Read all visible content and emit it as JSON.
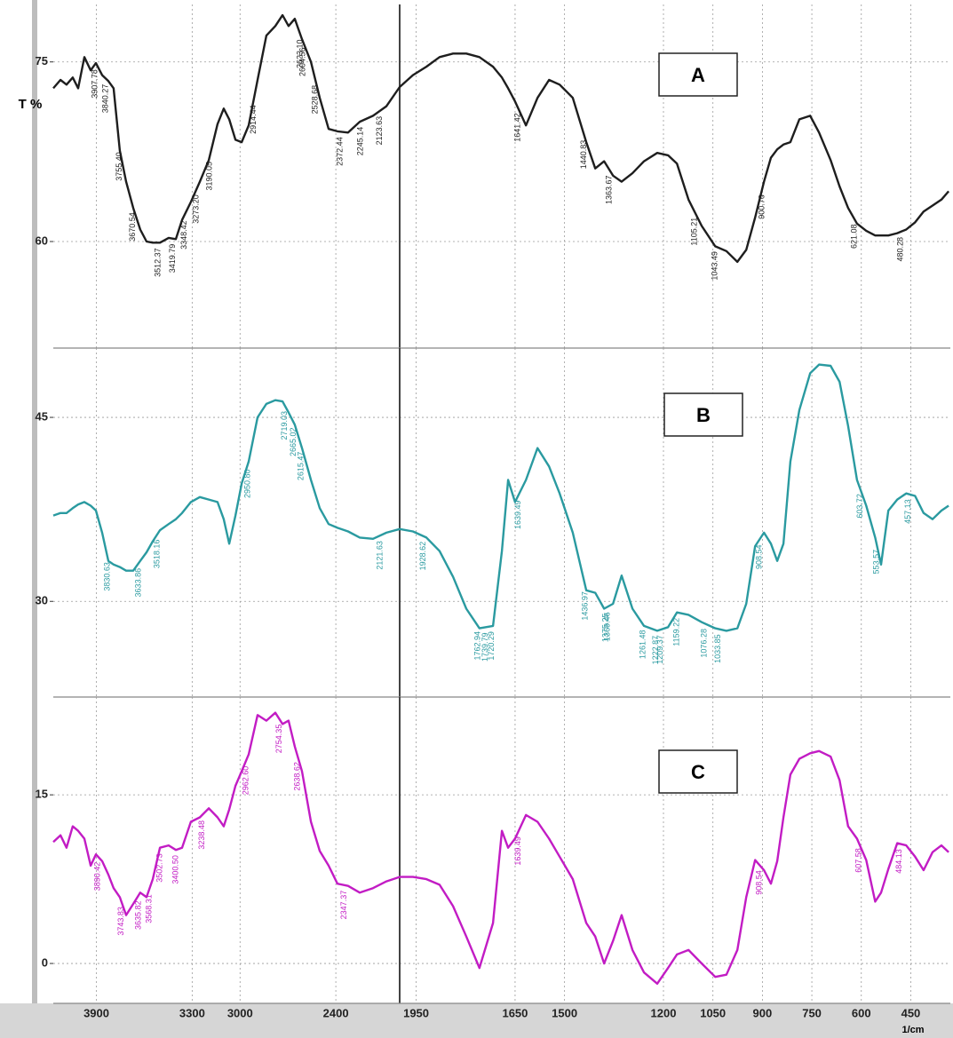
{
  "chart_data": {
    "type": "line",
    "ylabel": "T %",
    "xlabel": "1/cm",
    "xlim": [
      4170,
      330
    ],
    "x_break": 2000,
    "xticks": [
      3900,
      3300,
      3000,
      2400,
      1950,
      1650,
      1500,
      1200,
      1050,
      900,
      750,
      600,
      450
    ],
    "grid": true,
    "x": [
      4170,
      4125,
      4087,
      4048,
      4014,
      3975,
      3936,
      3903,
      3864,
      3825,
      3792,
      3753,
      3714,
      3669,
      3625,
      3586,
      3547,
      3502,
      3447,
      3402,
      3363,
      3308,
      3252,
      3196,
      3141,
      3102,
      3068,
      3029,
      2990,
      2946,
      2890,
      2835,
      2779,
      2734,
      2696,
      2657,
      2612,
      2556,
      2501,
      2445,
      2390,
      2323,
      2250,
      2167,
      2083,
      2000,
      1960,
      1919,
      1879,
      1838,
      1798,
      1758,
      1717,
      1690,
      1671,
      1650,
      1617,
      1582,
      1547,
      1515,
      1475,
      1434,
      1407,
      1380,
      1353,
      1327,
      1294,
      1259,
      1219,
      1186,
      1159,
      1124,
      1084,
      1043,
      1009,
      976,
      949,
      922,
      895,
      874,
      855,
      836,
      815,
      788,
      755,
      728,
      693,
      666,
      640,
      613,
      585,
      558,
      540,
      518,
      491,
      464,
      437,
      411,
      384,
      357,
      335
    ],
    "panels": [
      {
        "name": "A",
        "color": "#1e1e1e",
        "ylim": [
          51.1,
          79.8
        ],
        "yticks": [
          60,
          75
        ],
        "values": [
          72.8,
          73.5,
          73.1,
          73.7,
          72.8,
          75.4,
          74.3,
          74.9,
          73.9,
          73.4,
          72.8,
          67.6,
          65.0,
          62.8,
          61.0,
          60.0,
          59.9,
          59.9,
          60.3,
          60.2,
          61.8,
          63.3,
          65.0,
          66.8,
          69.8,
          71.1,
          70.2,
          68.5,
          68.3,
          69.7,
          73.5,
          77.2,
          78.0,
          78.9,
          78.0,
          78.6,
          76.9,
          75.0,
          72.0,
          69.4,
          69.2,
          69.1,
          70.0,
          70.5,
          71.3,
          72.9,
          73.9,
          74.6,
          75.4,
          75.7,
          75.7,
          75.4,
          74.6,
          73.7,
          72.8,
          71.7,
          69.7,
          72.0,
          73.5,
          73.1,
          72.0,
          68.3,
          66.1,
          66.7,
          65.5,
          65.0,
          65.7,
          66.7,
          67.4,
          67.2,
          66.5,
          63.5,
          61.3,
          59.6,
          59.2,
          58.3,
          59.3,
          62.0,
          65.0,
          67.0,
          67.7,
          68.1,
          68.3,
          70.2,
          70.5,
          69.1,
          66.8,
          64.6,
          62.8,
          61.5,
          60.9,
          60.5,
          60.5,
          60.5,
          60.7,
          61.0,
          61.6,
          62.5,
          63.0,
          63.5,
          64.2
        ],
        "peaks": [
          3907.78,
          3840.27,
          {
            "value": 3755.4,
            "label": "3755.40"
          },
          3670.54,
          3512.37,
          3419.79,
          3348.42,
          {
            "value": 3273.2,
            "label": "3273.20"
          },
          3190.05,
          2914.44,
          2604.56,
          {
            "value": 2623.1,
            "label": "2623.10"
          },
          2528.68,
          2372.44,
          2245.14,
          2123.63,
          1641.42,
          1440.83,
          1363.67,
          1105.21,
          1043.49,
          900.76,
          621.08,
          480.28
        ]
      },
      {
        "name": "B",
        "color": "#2a9aa0",
        "ylim": [
          22.2,
          50.65
        ],
        "yticks": [
          30,
          45
        ],
        "values": [
          37.0,
          37.2,
          37.2,
          37.6,
          37.9,
          38.1,
          37.8,
          37.4,
          35.6,
          33.3,
          33.0,
          32.8,
          32.5,
          32.5,
          33.3,
          34.0,
          34.9,
          35.8,
          36.3,
          36.7,
          37.2,
          38.1,
          38.5,
          38.3,
          38.1,
          36.7,
          34.7,
          37.0,
          39.6,
          41.4,
          45.0,
          46.1,
          46.4,
          46.3,
          45.4,
          44.4,
          42.5,
          39.9,
          37.6,
          36.3,
          36.0,
          35.7,
          35.2,
          35.1,
          35.6,
          35.9,
          35.7,
          35.2,
          34.1,
          32.0,
          29.4,
          27.8,
          28.0,
          34.1,
          39.9,
          38.1,
          39.9,
          42.5,
          41.0,
          38.8,
          35.6,
          30.9,
          30.7,
          29.4,
          29.8,
          32.1,
          29.4,
          28.0,
          27.6,
          27.9,
          29.1,
          28.9,
          28.3,
          27.8,
          27.6,
          27.8,
          29.8,
          34.5,
          35.6,
          34.7,
          33.3,
          34.7,
          41.4,
          45.6,
          48.6,
          49.3,
          49.2,
          47.9,
          44.3,
          39.9,
          37.8,
          35.2,
          33.0,
          37.4,
          38.3,
          38.8,
          38.6,
          37.2,
          36.7,
          37.4,
          37.8
        ],
        "peaks": [
          3830.63,
          3633.86,
          3518.16,
          {
            "value": 2950.8,
            "label": "2950.80"
          },
          2719.03,
          2665.02,
          2615.47,
          2121.63,
          1928.62,
          1762.94,
          1739.79,
          1720.29,
          1639.49,
          1436.97,
          1375.25,
          1369.46,
          1261.48,
          1222.87,
          1209.37,
          1159.22,
          1076.28,
          1033.85,
          908.54,
          603.72,
          553.57,
          457.13
        ]
      },
      {
        "name": "C",
        "color": "#c21cc4",
        "ylim": [
          -3.55,
          23.7
        ],
        "yticks": [
          0,
          15
        ],
        "values": [
          10.8,
          11.4,
          10.3,
          12.2,
          11.8,
          11.1,
          8.7,
          9.7,
          9.1,
          7.9,
          6.7,
          5.9,
          4.3,
          5.3,
          6.3,
          5.9,
          7.5,
          10.3,
          10.5,
          10.1,
          10.3,
          12.6,
          13.0,
          13.8,
          13.0,
          12.2,
          13.7,
          15.8,
          17.1,
          18.6,
          22.1,
          21.6,
          22.3,
          21.3,
          21.6,
          19.3,
          17.1,
          12.6,
          10.0,
          8.7,
          7.1,
          6.9,
          6.3,
          6.7,
          7.3,
          7.7,
          7.7,
          7.5,
          7.0,
          5.1,
          2.4,
          -0.4,
          3.6,
          11.8,
          10.3,
          11.1,
          13.2,
          12.6,
          11.1,
          9.5,
          7.5,
          3.6,
          2.4,
          0.0,
          2.0,
          4.3,
          1.2,
          -0.8,
          -1.8,
          -0.4,
          0.8,
          1.2,
          0.0,
          -1.2,
          -1.0,
          1.2,
          5.9,
          9.2,
          8.3,
          7.1,
          9.1,
          13.0,
          16.8,
          18.2,
          18.7,
          18.9,
          18.4,
          16.3,
          12.2,
          11.1,
          9.2,
          5.5,
          6.3,
          8.4,
          10.7,
          10.5,
          9.5,
          8.3,
          9.9,
          10.5,
          9.9
        ],
        "peaks": [
          3890.42,
          3743.83,
          3635.82,
          3568.31,
          3502.73,
          {
            "value": 3400.5,
            "label": "3400.50"
          },
          3238.48,
          {
            "value": 2962.6,
            "label": "2962.60"
          },
          2754.35,
          2638.62,
          2347.37,
          1639.49,
          908.54,
          607.58,
          484.13
        ]
      }
    ]
  }
}
